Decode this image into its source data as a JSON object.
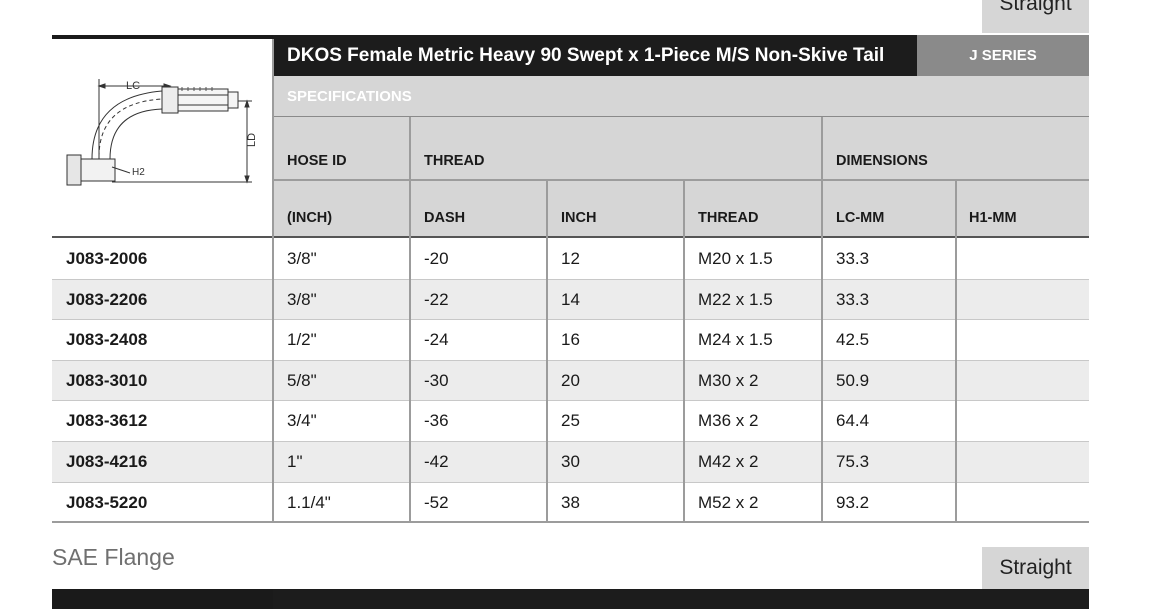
{
  "top_tab": {
    "label": "Straight"
  },
  "header": {
    "title": "DKOS Female Metric Heavy 90 Swept x 1-Piece M/S Non-Skive Tail",
    "series": "J SERIES",
    "specifications": "SPECIFICATIONS"
  },
  "diagram": {
    "label_lc": "LC",
    "label_ld": "LD",
    "label_h2": "H2"
  },
  "columns": {
    "hose_id": "HOSE ID",
    "thread_group": "THREAD",
    "dimensions_group": "DIMENSIONS",
    "inch_unit": "(INCH)",
    "dash": "DASH",
    "inch": "INCH",
    "thread": "THREAD",
    "lc_mm": "LC-MM",
    "h1_mm": "H1-MM"
  },
  "rows": [
    {
      "part": "J083-2006",
      "hose_id": "3/8\"",
      "dash": "-20",
      "inch": "12",
      "thread": "M20 x 1.5",
      "lc_mm": "33.3",
      "h1_mm": ""
    },
    {
      "part": "J083-2206",
      "hose_id": "3/8\"",
      "dash": "-22",
      "inch": "14",
      "thread": "M22 x 1.5",
      "lc_mm": "33.3",
      "h1_mm": ""
    },
    {
      "part": "J083-2408",
      "hose_id": "1/2\"",
      "dash": "-24",
      "inch": "16",
      "thread": "M24 x 1.5",
      "lc_mm": "42.5",
      "h1_mm": ""
    },
    {
      "part": "J083-3010",
      "hose_id": "5/8\"",
      "dash": "-30",
      "inch": "20",
      "thread": "M30 x 2",
      "lc_mm": "50.9",
      "h1_mm": ""
    },
    {
      "part": "J083-3612",
      "hose_id": "3/4\"",
      "dash": "-36",
      "inch": "25",
      "thread": "M36 x 2",
      "lc_mm": "64.4",
      "h1_mm": ""
    },
    {
      "part": "J083-4216",
      "hose_id": "1\"",
      "dash": "-42",
      "inch": "30",
      "thread": "M42 x 2",
      "lc_mm": "75.3",
      "h1_mm": ""
    },
    {
      "part": "J083-5220",
      "hose_id": "1.1/4\"",
      "dash": "-52",
      "inch": "38",
      "thread": "M52 x 2",
      "lc_mm": "93.2",
      "h1_mm": ""
    }
  ],
  "next_section": {
    "title": "SAE Flange",
    "tab_label": "Straight"
  }
}
